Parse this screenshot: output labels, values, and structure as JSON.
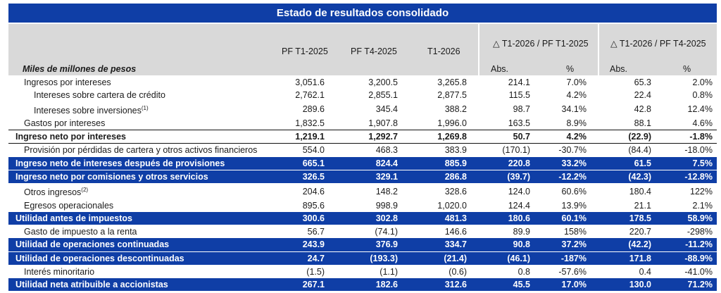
{
  "title": "Estado de resultados consolidado",
  "units_label": "Miles de millones de pesos",
  "col_headers": {
    "c1": "PF T1-2025",
    "c2": "PF T4-2025",
    "c3": "T1-2026",
    "group1": "△ T1-2026 / PF T1-2025",
    "group2": "△ T1-2026 / PF T4-2025",
    "abs1": "Abs.",
    "pct1": "%",
    "abs2": "Abs.",
    "pct2": "%"
  },
  "rows": [
    {
      "label": "Ingresos por intereses",
      "sup": "",
      "style": "plain",
      "indent": 1,
      "v": [
        "3,051.6",
        "3,200.5",
        "3,265.8",
        "214.1",
        "7.0%",
        "65.3",
        "2.0%"
      ]
    },
    {
      "label": "Intereses sobre cartera de crédito",
      "sup": "",
      "style": "plain",
      "indent": 2,
      "v": [
        "2,762.1",
        "2,855.1",
        "2,877.5",
        "115.5",
        "4.2%",
        "22.4",
        "0.8%"
      ]
    },
    {
      "label": "Intereses sobre inversiones",
      "sup": "(1)",
      "style": "plain",
      "indent": 2,
      "v": [
        "289.6",
        "345.4",
        "388.2",
        "98.7",
        "34.1%",
        "42.8",
        "12.4%"
      ]
    },
    {
      "label": "Gastos por intereses",
      "sup": "",
      "style": "plain",
      "indent": 1,
      "v": [
        "1,832.5",
        "1,907.8",
        "1,996.0",
        "163.5",
        "8.9%",
        "88.1",
        "4.6%"
      ]
    },
    {
      "label": "Ingreso neto por intereses",
      "sup": "",
      "style": "bold",
      "indent": 0,
      "v": [
        "1,219.1",
        "1,292.7",
        "1,269.8",
        "50.7",
        "4.2%",
        "(22.9)",
        "-1.8%"
      ]
    },
    {
      "label": "Provisión por pérdidas de cartera y otros activos financieros",
      "sup": "",
      "style": "plain",
      "indent": 1,
      "v": [
        "554.0",
        "468.3",
        "383.9",
        "(170.1)",
        "-30.7%",
        "(84.4)",
        "-18.0%"
      ]
    },
    {
      "label": "Ingreso neto de intereses después de provisiones",
      "sup": "",
      "style": "blue",
      "indent": 0,
      "v": [
        "665.1",
        "824.4",
        "885.9",
        "220.8",
        "33.2%",
        "61.5",
        "7.5%"
      ]
    },
    {
      "label": "Ingreso neto por comisiones y otros servicios",
      "sup": "",
      "style": "blue",
      "indent": 0,
      "v": [
        "326.5",
        "329.1",
        "286.8",
        "(39.7)",
        "-12.2%",
        "(42.3)",
        "-12.8%"
      ]
    },
    {
      "label": "Otros ingresos",
      "sup": "(2)",
      "style": "plain",
      "indent": 1,
      "v": [
        "204.6",
        "148.2",
        "328.6",
        "124.0",
        "60.6%",
        "180.4",
        "122%"
      ]
    },
    {
      "label": "Egresos operacionales",
      "sup": "",
      "style": "plain",
      "indent": 1,
      "v": [
        "895.6",
        "998.9",
        "1,020.0",
        "124.4",
        "13.9%",
        "21.1",
        "2.1%"
      ]
    },
    {
      "label": "Utilidad antes de impuestos",
      "sup": "",
      "style": "blue",
      "indent": 0,
      "v": [
        "300.6",
        "302.8",
        "481.3",
        "180.6",
        "60.1%",
        "178.5",
        "58.9%"
      ]
    },
    {
      "label": "Gasto de impuesto a la renta",
      "sup": "",
      "style": "plain",
      "indent": 1,
      "v": [
        "56.7",
        "(74.1)",
        "146.6",
        "89.9",
        "158%",
        "220.7",
        "-298%"
      ]
    },
    {
      "label": "Utilidad de operaciones continuadas",
      "sup": "",
      "style": "blue",
      "indent": 0,
      "v": [
        "243.9",
        "376.9",
        "334.7",
        "90.8",
        "37.2%",
        "(42.2)",
        "-11.2%"
      ]
    },
    {
      "label": "Utilidad de operaciones descontinuadas",
      "sup": "",
      "style": "blue",
      "indent": 0,
      "v": [
        "24.7",
        "(193.3)",
        "(21.4)",
        "(46.1)",
        "-187%",
        "171.8",
        "-88.9%"
      ]
    },
    {
      "label": "Interés minoritario",
      "sup": "",
      "style": "plain",
      "indent": 1,
      "v": [
        "(1.5)",
        "(1.1)",
        "(0.6)",
        "0.8",
        "-57.6%",
        "0.4",
        "-41.0%"
      ]
    },
    {
      "label": "Utilidad neta atribuible a accionistas",
      "sup": "",
      "style": "blue",
      "indent": 0,
      "v": [
        "267.1",
        "182.6",
        "312.6",
        "45.5",
        "17.0%",
        "130.0",
        "71.2%"
      ]
    }
  ]
}
